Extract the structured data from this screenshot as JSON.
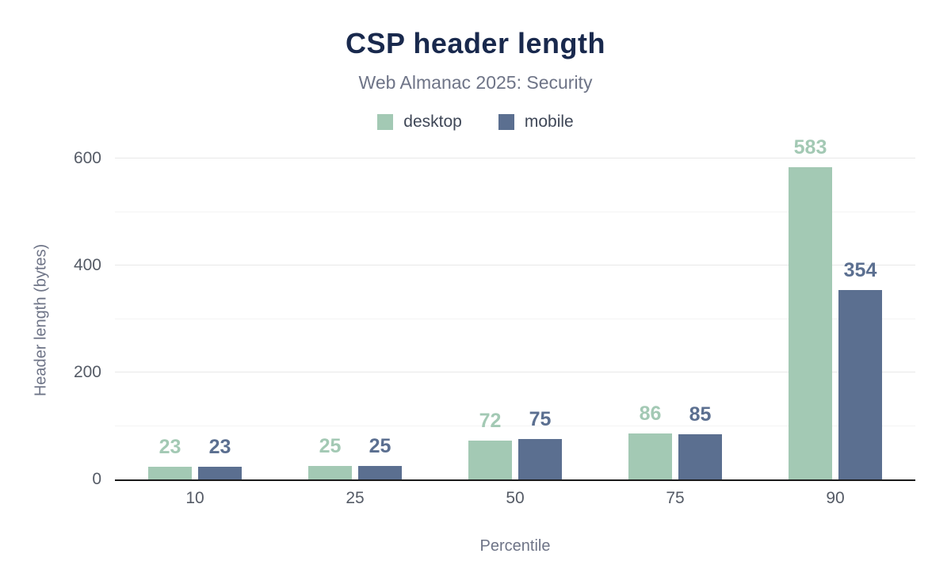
{
  "title": "CSP header length",
  "subtitle": "Web Almanac 2025: Security",
  "axes": {
    "x_title": "Percentile",
    "y_title": "Header length (bytes)"
  },
  "chart_data": {
    "type": "bar",
    "title": "CSP header length",
    "subtitle": "Web Almanac 2025: Security",
    "categories": [
      "10",
      "25",
      "50",
      "75",
      "90"
    ],
    "series": [
      {
        "name": "desktop",
        "color": "#a3c9b4",
        "values": [
          23,
          25,
          72,
          86,
          583
        ]
      },
      {
        "name": "mobile",
        "color": "#5b6f90",
        "values": [
          23,
          25,
          75,
          85,
          354
        ]
      }
    ],
    "xlabel": "Percentile",
    "ylabel": "Header length (bytes)",
    "ylim": [
      0,
      600
    ],
    "yticks": [
      0,
      200,
      400,
      600
    ],
    "minor_grid_step": 100,
    "grid": true,
    "legend_position": "top",
    "data_labels": true
  }
}
